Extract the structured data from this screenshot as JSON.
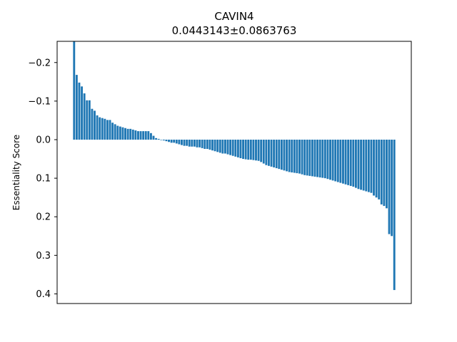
{
  "chart_data": {
    "type": "bar",
    "title": "CAVIN4",
    "subtitle": "0.0443143±0.0863763",
    "xlabel": "",
    "ylabel": "Essentiality Score",
    "y_inverted": true,
    "ylim": [
      -0.255,
      0.425
    ],
    "yticks": [
      -0.2,
      -0.1,
      0.0,
      0.1,
      0.2,
      0.3,
      0.4
    ],
    "ytick_labels": [
      "−0.2",
      "−0.1",
      "0.0",
      "0.1",
      "0.2",
      "0.3",
      "0.4"
    ],
    "bar_color": "#1f77b4",
    "grid": false,
    "legend": false,
    "values": [
      -0.255,
      -0.168,
      -0.148,
      -0.138,
      -0.12,
      -0.102,
      -0.102,
      -0.08,
      -0.075,
      -0.063,
      -0.058,
      -0.056,
      -0.054,
      -0.051,
      -0.051,
      -0.044,
      -0.04,
      -0.036,
      -0.034,
      -0.032,
      -0.03,
      -0.028,
      -0.028,
      -0.026,
      -0.024,
      -0.022,
      -0.022,
      -0.022,
      -0.022,
      -0.022,
      -0.017,
      -0.01,
      -0.004,
      -0.002,
      0.0,
      0.002,
      0.004,
      0.006,
      0.008,
      0.008,
      0.01,
      0.012,
      0.014,
      0.016,
      0.016,
      0.018,
      0.018,
      0.018,
      0.02,
      0.02,
      0.022,
      0.024,
      0.024,
      0.026,
      0.028,
      0.03,
      0.032,
      0.034,
      0.036,
      0.036,
      0.038,
      0.04,
      0.042,
      0.044,
      0.046,
      0.048,
      0.05,
      0.051,
      0.052,
      0.052,
      0.053,
      0.054,
      0.055,
      0.058,
      0.062,
      0.066,
      0.068,
      0.07,
      0.072,
      0.074,
      0.076,
      0.078,
      0.08,
      0.082,
      0.084,
      0.085,
      0.086,
      0.087,
      0.088,
      0.09,
      0.092,
      0.093,
      0.094,
      0.095,
      0.096,
      0.097,
      0.098,
      0.099,
      0.1,
      0.102,
      0.104,
      0.106,
      0.108,
      0.11,
      0.112,
      0.114,
      0.116,
      0.118,
      0.12,
      0.122,
      0.125,
      0.128,
      0.13,
      0.132,
      0.134,
      0.136,
      0.138,
      0.145,
      0.15,
      0.155,
      0.168,
      0.172,
      0.178,
      0.245,
      0.25,
      0.39
    ]
  }
}
